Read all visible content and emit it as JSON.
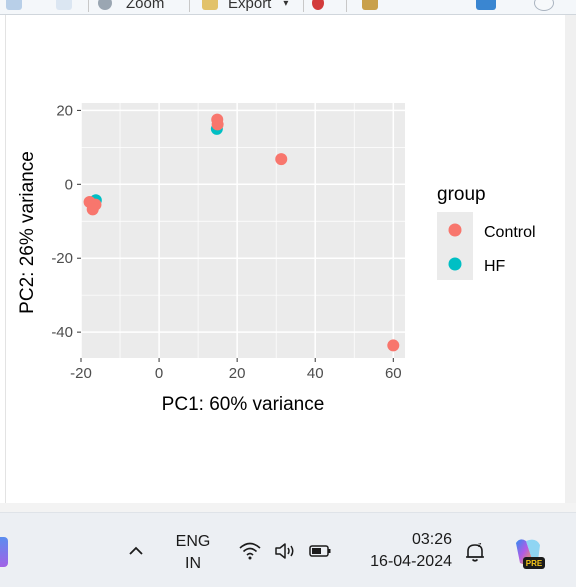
{
  "toolbar": {
    "zoom_label": "Zoom",
    "export_label": "Export",
    "icons": [
      "back-arrow-icon",
      "forward-arrow-icon",
      "zoom-icon",
      "export-icon",
      "remove-plot-icon",
      "broom-icon",
      "publish-icon",
      "refresh-icon"
    ]
  },
  "chart_data": {
    "type": "scatter",
    "xlabel": "PC1: 60% variance",
    "ylabel": "PC2: 26% variance",
    "xlim": [
      -20,
      63
    ],
    "ylim": [
      -47,
      22
    ],
    "x_ticks": [
      -20,
      0,
      20,
      40,
      60
    ],
    "y_ticks": [
      20,
      0,
      -20,
      -40
    ],
    "x_tick_labels": [
      "-20",
      "0",
      "20",
      "40",
      "60"
    ],
    "y_tick_labels": [
      "20",
      "0",
      "-20",
      "-40"
    ],
    "grid": true,
    "legend": {
      "title": "group",
      "position": "right",
      "entries": [
        "Control",
        "HF"
      ]
    },
    "series": [
      {
        "name": "HF",
        "color": "#00BFC4",
        "points": [
          {
            "x": -16.2,
            "y": -4.3
          },
          {
            "x": 14.8,
            "y": 15.0
          },
          {
            "x": -16.8,
            "y": -5.6
          }
        ]
      },
      {
        "name": "Control",
        "color": "#F8766D",
        "points": [
          {
            "x": -17.8,
            "y": -4.8
          },
          {
            "x": -16.3,
            "y": -5.5
          },
          {
            "x": -17.0,
            "y": -6.8
          },
          {
            "x": 15.0,
            "y": 16.2
          },
          {
            "x": 14.9,
            "y": 17.5
          },
          {
            "x": 31.3,
            "y": 6.8
          },
          {
            "x": 60.0,
            "y": -43.6
          }
        ]
      }
    ]
  },
  "taskbar": {
    "lang_top": "ENG",
    "lang_bottom": "IN",
    "time": "03:26",
    "date": "16-04-2024",
    "copilot_badge": "PRE",
    "icons": [
      "chevron-up-icon",
      "wifi-icon",
      "speaker-icon",
      "battery-icon",
      "do-not-disturb-icon",
      "copilot-icon"
    ]
  }
}
